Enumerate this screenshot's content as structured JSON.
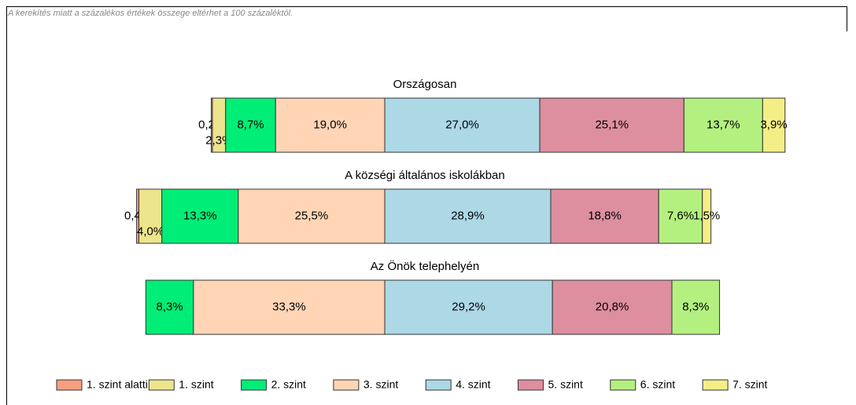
{
  "note": "A kerekítés miatt a százalékos értékek összege eltérhet a 100 százaléktól.",
  "chart_data": {
    "type": "bar",
    "orientation": "horizontal",
    "stacked": true,
    "categories": [
      "Országosan",
      "A községi általános iskolákban",
      "Az Önök telephelyén"
    ],
    "series": [
      {
        "name": "1. szint alatti",
        "color": "#f7a07f",
        "values": [
          0.2,
          0.4,
          null
        ],
        "value_labels": [
          "0,2%",
          "0,4%",
          null
        ]
      },
      {
        "name": "1. szint",
        "color": "#ede48e",
        "values": [
          2.3,
          4.0,
          null
        ],
        "value_labels": [
          "2,3%",
          "4,0%",
          null
        ]
      },
      {
        "name": "2. szint",
        "color": "#00ee77",
        "values": [
          8.7,
          13.3,
          8.3
        ],
        "value_labels": [
          "8,7%",
          "13,3%",
          "8,3%"
        ]
      },
      {
        "name": "3. szint",
        "color": "#ffd5b6",
        "values": [
          19.0,
          25.5,
          33.3
        ],
        "value_labels": [
          "19,0%",
          "25,5%",
          "33,3%"
        ]
      },
      {
        "name": "4. szint",
        "color": "#add8e6",
        "values": [
          27.0,
          28.9,
          29.2
        ],
        "value_labels": [
          "27,0%",
          "28,9%",
          "29,2%"
        ]
      },
      {
        "name": "5. szint",
        "color": "#dd8fa0",
        "values": [
          25.1,
          18.8,
          20.8
        ],
        "value_labels": [
          "25,1%",
          "18,8%",
          "20,8%"
        ]
      },
      {
        "name": "6. szint",
        "color": "#b4f080",
        "values": [
          13.7,
          7.6,
          8.3
        ],
        "value_labels": [
          "13,7%",
          "7,6%",
          "8,3%"
        ]
      },
      {
        "name": "7. szint",
        "color": "#f3ee86",
        "values": [
          3.9,
          1.5,
          null
        ],
        "value_labels": [
          "3,9%",
          "1,5%",
          null
        ]
      }
    ]
  }
}
